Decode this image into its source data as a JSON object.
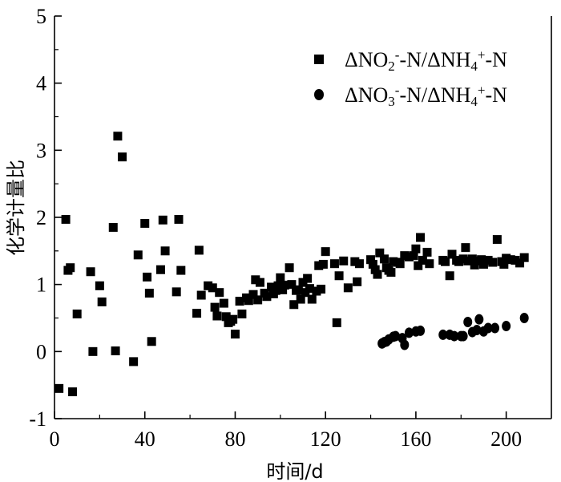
{
  "chart_data": {
    "type": "scatter",
    "title": "",
    "xlabel": "时间/d",
    "ylabel": "化学计量比",
    "xlim": [
      0,
      220
    ],
    "ylim": [
      -1,
      5
    ],
    "xticks": [
      0,
      40,
      80,
      120,
      160,
      200
    ],
    "yticks": [
      -1,
      0,
      1,
      2,
      3,
      4,
      5
    ],
    "grid": false,
    "legend_position": "top-right",
    "series": [
      {
        "name": "ΔNO2--N/ΔNH4+-N",
        "marker": "square",
        "color": "#000000",
        "points": [
          [
            2,
            -0.55
          ],
          [
            5,
            1.97
          ],
          [
            6,
            1.21
          ],
          [
            7,
            1.25
          ],
          [
            8,
            -0.6
          ],
          [
            10,
            0.56
          ],
          [
            16,
            1.19
          ],
          [
            17,
            0.0
          ],
          [
            20,
            0.98
          ],
          [
            21,
            0.74
          ],
          [
            26,
            1.85
          ],
          [
            27,
            0.01
          ],
          [
            28,
            3.21
          ],
          [
            30,
            2.9
          ],
          [
            35,
            -0.15
          ],
          [
            37,
            1.44
          ],
          [
            40,
            1.91
          ],
          [
            41,
            1.11
          ],
          [
            42,
            0.87
          ],
          [
            43,
            0.15
          ],
          [
            47,
            1.22
          ],
          [
            48,
            1.96
          ],
          [
            49,
            1.5
          ],
          [
            54,
            0.89
          ],
          [
            55,
            1.97
          ],
          [
            56,
            1.21
          ],
          [
            63,
            0.57
          ],
          [
            64,
            1.51
          ],
          [
            65,
            0.84
          ],
          [
            68,
            0.98
          ],
          [
            70,
            0.95
          ],
          [
            71,
            0.66
          ],
          [
            72,
            0.53
          ],
          [
            73,
            0.88
          ],
          [
            75,
            0.72
          ],
          [
            76,
            0.52
          ],
          [
            77,
            0.43
          ],
          [
            78,
            0.45
          ],
          [
            79,
            0.48
          ],
          [
            80,
            0.26
          ],
          [
            82,
            0.75
          ],
          [
            83,
            0.56
          ],
          [
            85,
            0.8
          ],
          [
            86,
            0.76
          ],
          [
            88,
            0.85
          ],
          [
            89,
            1.07
          ],
          [
            90,
            0.77
          ],
          [
            91,
            1.03
          ],
          [
            93,
            0.87
          ],
          [
            94,
            0.82
          ],
          [
            96,
            0.96
          ],
          [
            97,
            0.86
          ],
          [
            98,
            0.91
          ],
          [
            99,
            0.98
          ],
          [
            100,
            1.1
          ],
          [
            101,
            0.92
          ],
          [
            102,
            0.99
          ],
          [
            104,
            1.25
          ],
          [
            105,
            1.0
          ],
          [
            106,
            0.7
          ],
          [
            107,
            0.91
          ],
          [
            108,
            0.92
          ],
          [
            109,
            0.78
          ],
          [
            110,
            1.03
          ],
          [
            111,
            0.88
          ],
          [
            112,
            1.09
          ],
          [
            113,
            0.94
          ],
          [
            114,
            0.78
          ],
          [
            116,
            0.9
          ],
          [
            117,
            1.28
          ],
          [
            118,
            0.93
          ],
          [
            119,
            1.3
          ],
          [
            120,
            1.49
          ],
          [
            124,
            1.31
          ],
          [
            125,
            0.43
          ],
          [
            126,
            1.13
          ],
          [
            128,
            1.35
          ],
          [
            130,
            0.95
          ],
          [
            133,
            1.34
          ],
          [
            134,
            1.04
          ],
          [
            135,
            1.31
          ],
          [
            140,
            1.37
          ],
          [
            141,
            1.3
          ],
          [
            142,
            1.22
          ],
          [
            143,
            1.15
          ],
          [
            144,
            1.47
          ],
          [
            146,
            1.38
          ],
          [
            147,
            1.25
          ],
          [
            148,
            1.21
          ],
          [
            149,
            1.18
          ],
          [
            150,
            1.34
          ],
          [
            152,
            1.33
          ],
          [
            153,
            1.31
          ],
          [
            155,
            1.43
          ],
          [
            157,
            1.41
          ],
          [
            159,
            1.43
          ],
          [
            160,
            1.53
          ],
          [
            161,
            1.28
          ],
          [
            162,
            1.7
          ],
          [
            163,
            1.36
          ],
          [
            165,
            1.48
          ],
          [
            166,
            1.31
          ],
          [
            172,
            1.36
          ],
          [
            173,
            1.34
          ],
          [
            175,
            1.13
          ],
          [
            176,
            1.45
          ],
          [
            178,
            1.36
          ],
          [
            179,
            1.34
          ],
          [
            181,
            1.38
          ],
          [
            182,
            1.55
          ],
          [
            183,
            1.35
          ],
          [
            185,
            1.38
          ],
          [
            186,
            1.29
          ],
          [
            187,
            1.35
          ],
          [
            189,
            1.37
          ],
          [
            190,
            1.3
          ],
          [
            192,
            1.36
          ],
          [
            194,
            1.33
          ],
          [
            196,
            1.67
          ],
          [
            198,
            1.34
          ],
          [
            199,
            1.3
          ],
          [
            200,
            1.39
          ],
          [
            202,
            1.37
          ],
          [
            204,
            1.36
          ],
          [
            206,
            1.32
          ],
          [
            208,
            1.4
          ]
        ]
      },
      {
        "name": "ΔNO3--N/ΔNH4+-N",
        "marker": "circle",
        "color": "#000000",
        "points": [
          [
            145,
            0.12
          ],
          [
            146,
            0.14
          ],
          [
            147,
            0.15
          ],
          [
            148,
            0.18
          ],
          [
            150,
            0.22
          ],
          [
            151,
            0.23
          ],
          [
            154,
            0.2
          ],
          [
            155,
            0.1
          ],
          [
            157,
            0.28
          ],
          [
            160,
            0.3
          ],
          [
            162,
            0.31
          ],
          [
            172,
            0.25
          ],
          [
            175,
            0.25
          ],
          [
            177,
            0.23
          ],
          [
            180,
            0.23
          ],
          [
            181,
            0.23
          ],
          [
            183,
            0.44
          ],
          [
            185,
            0.29
          ],
          [
            187,
            0.32
          ],
          [
            188,
            0.48
          ],
          [
            190,
            0.3
          ],
          [
            192,
            0.35
          ],
          [
            195,
            0.35
          ],
          [
            200,
            0.38
          ],
          [
            208,
            0.5
          ]
        ]
      }
    ],
    "legend": [
      {
        "marker": "square",
        "parts": [
          [
            "ΔNO",
            ""
          ],
          [
            "2",
            "sub"
          ],
          [
            "-",
            "sup"
          ],
          [
            "-N/ΔNH",
            ""
          ],
          [
            "4",
            "sub"
          ],
          [
            "+",
            "sup"
          ],
          [
            "-N",
            ""
          ]
        ]
      },
      {
        "marker": "circle",
        "parts": [
          [
            "ΔNO",
            ""
          ],
          [
            "3",
            "sub"
          ],
          [
            "-",
            "sup"
          ],
          [
            "-N/ΔNH",
            ""
          ],
          [
            "4",
            "sub"
          ],
          [
            "+",
            "sup"
          ],
          [
            "-N",
            ""
          ]
        ]
      }
    ]
  }
}
